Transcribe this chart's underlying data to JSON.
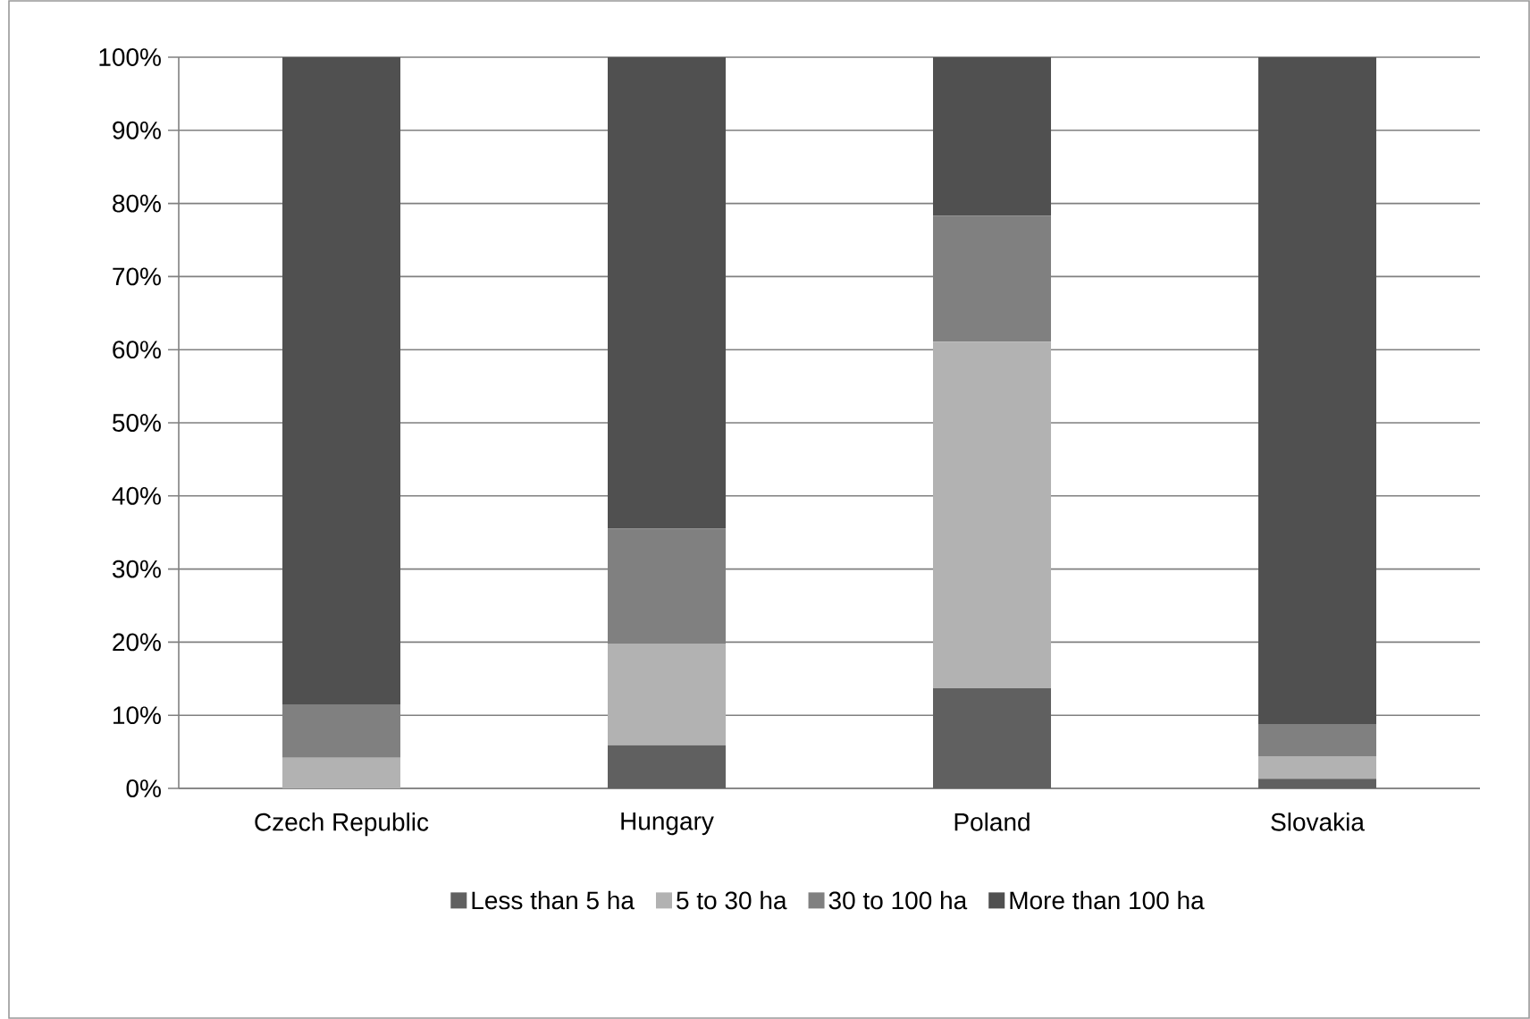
{
  "chart_data": {
    "type": "bar",
    "stacked": true,
    "categories": [
      "Czech Republic",
      "Hungary",
      "Poland",
      "Slovakia"
    ],
    "series": [
      {
        "name": "Less than 5 ha",
        "color": "#606060",
        "values": [
          0,
          5.9,
          13.7,
          1.3
        ]
      },
      {
        "name": "5 to 30 ha",
        "color": "#b2b2b2",
        "values": [
          4.2,
          13.9,
          47.4,
          3.1
        ]
      },
      {
        "name": "30 to 100 ha",
        "color": "#808080",
        "values": [
          7.3,
          15.7,
          17.2,
          4.4
        ]
      },
      {
        "name": "More than 100 ha",
        "color": "#505050",
        "values": [
          88.5,
          64.5,
          21.7,
          91.2
        ]
      }
    ],
    "ylim": [
      0,
      100
    ],
    "yticks": [
      {
        "value": 0,
        "label": "0%"
      },
      {
        "value": 10,
        "label": "10%"
      },
      {
        "value": 20,
        "label": "20%"
      },
      {
        "value": 30,
        "label": "30%"
      },
      {
        "value": 40,
        "label": "40%"
      },
      {
        "value": 50,
        "label": "50%"
      },
      {
        "value": 60,
        "label": "60%"
      },
      {
        "value": 70,
        "label": "70%"
      },
      {
        "value": 80,
        "label": "80%"
      },
      {
        "value": 90,
        "label": "90%"
      },
      {
        "value": 100,
        "label": "100%"
      }
    ],
    "grid": "y",
    "legend": "bottom"
  }
}
